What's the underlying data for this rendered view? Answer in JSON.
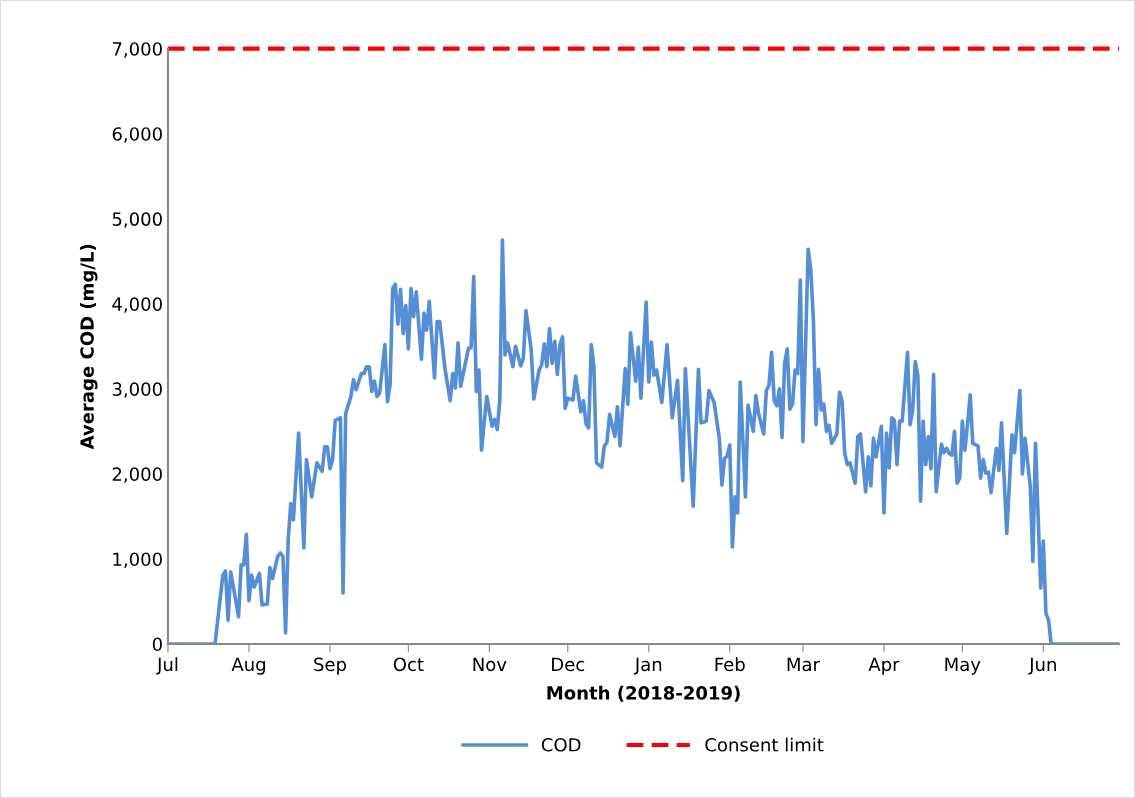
{
  "chart_data": {
    "type": "line",
    "xlabel": "Month (2018-2019)",
    "ylabel": "Average COD (mg/L)",
    "x": [
      "2018-07-01",
      "2018-07-19",
      "2018-07-22",
      "2018-07-23",
      "2018-07-24",
      "2018-07-25",
      "2018-07-27",
      "2018-07-28",
      "2018-07-29",
      "2018-07-30",
      "2018-07-31",
      "2018-08-01",
      "2018-08-02",
      "2018-08-03",
      "2018-08-05",
      "2018-08-06",
      "2018-08-08",
      "2018-08-09",
      "2018-08-10",
      "2018-08-12",
      "2018-08-13",
      "2018-08-14",
      "2018-08-15",
      "2018-08-16",
      "2018-08-17",
      "2018-08-18",
      "2018-08-20",
      "2018-08-22",
      "2018-08-23",
      "2018-08-25",
      "2018-08-27",
      "2018-08-29",
      "2018-08-30",
      "2018-08-31",
      "2018-09-01",
      "2018-09-02",
      "2018-09-03",
      "2018-09-05",
      "2018-09-06",
      "2018-09-07",
      "2018-09-09",
      "2018-09-10",
      "2018-09-11",
      "2018-09-13",
      "2018-09-14",
      "2018-09-15",
      "2018-09-16",
      "2018-09-17",
      "2018-09-18",
      "2018-09-19",
      "2018-09-20",
      "2018-09-22",
      "2018-09-23",
      "2018-09-24",
      "2018-09-25",
      "2018-09-26",
      "2018-09-27",
      "2018-09-28",
      "2018-09-29",
      "2018-09-30",
      "2018-10-01",
      "2018-10-02",
      "2018-10-03",
      "2018-10-04",
      "2018-10-06",
      "2018-10-07",
      "2018-10-08",
      "2018-10-09",
      "2018-10-11",
      "2018-10-12",
      "2018-10-13",
      "2018-10-15",
      "2018-10-17",
      "2018-10-18",
      "2018-10-19",
      "2018-10-20",
      "2018-10-21",
      "2018-10-24",
      "2018-10-25",
      "2018-10-26",
      "2018-10-27",
      "2018-10-28",
      "2018-10-29",
      "2018-10-31",
      "2018-11-02",
      "2018-11-03",
      "2018-11-04",
      "2018-11-05",
      "2018-11-06",
      "2018-11-07",
      "2018-11-08",
      "2018-11-10",
      "2018-11-11",
      "2018-11-13",
      "2018-11-14",
      "2018-11-15",
      "2018-11-17",
      "2018-11-18",
      "2018-11-20",
      "2018-11-21",
      "2018-11-22",
      "2018-11-23",
      "2018-11-24",
      "2018-11-25",
      "2018-11-26",
      "2018-11-27",
      "2018-11-28",
      "2018-11-29",
      "2018-11-30",
      "2018-12-01",
      "2018-12-03",
      "2018-12-04",
      "2018-12-06",
      "2018-12-07",
      "2018-12-08",
      "2018-12-09",
      "2018-12-10",
      "2018-12-11",
      "2018-12-12",
      "2018-12-14",
      "2018-12-15",
      "2018-12-16",
      "2018-12-17",
      "2018-12-19",
      "2018-12-20",
      "2018-12-21",
      "2018-12-23",
      "2018-12-24",
      "2018-12-25",
      "2018-12-27",
      "2018-12-28",
      "2018-12-29",
      "2018-12-31",
      "2019-01-01",
      "2019-01-02",
      "2019-01-03",
      "2019-01-04",
      "2019-01-06",
      "2019-01-08",
      "2019-01-10",
      "2019-01-12",
      "2019-01-14",
      "2019-01-15",
      "2019-01-18",
      "2019-01-20",
      "2019-01-21",
      "2019-01-23",
      "2019-01-24",
      "2019-01-26",
      "2019-01-28",
      "2019-01-29",
      "2019-01-30",
      "2019-01-31",
      "2019-02-01",
      "2019-02-02",
      "2019-02-03",
      "2019-02-04",
      "2019-02-05",
      "2019-02-07",
      "2019-02-08",
      "2019-02-10",
      "2019-02-11",
      "2019-02-12",
      "2019-02-14",
      "2019-02-15",
      "2019-02-16",
      "2019-02-17",
      "2019-02-18",
      "2019-02-19",
      "2019-02-20",
      "2019-02-21",
      "2019-02-22",
      "2019-02-23",
      "2019-02-24",
      "2019-02-25",
      "2019-02-26",
      "2019-02-27",
      "2019-02-28",
      "2019-03-01",
      "2019-03-03",
      "2019-03-04",
      "2019-03-05",
      "2019-03-06",
      "2019-03-07",
      "2019-03-08",
      "2019-03-09",
      "2019-03-10",
      "2019-03-11",
      "2019-03-12",
      "2019-03-14",
      "2019-03-15",
      "2019-03-16",
      "2019-03-17",
      "2019-03-18",
      "2019-03-19",
      "2019-03-21",
      "2019-03-22",
      "2019-03-23",
      "2019-03-25",
      "2019-03-26",
      "2019-03-27",
      "2019-03-28",
      "2019-03-29",
      "2019-03-31",
      "2019-04-01",
      "2019-04-02",
      "2019-04-03",
      "2019-04-04",
      "2019-04-05",
      "2019-04-06",
      "2019-04-07",
      "2019-04-08",
      "2019-04-10",
      "2019-04-11",
      "2019-04-12",
      "2019-04-13",
      "2019-04-14",
      "2019-04-15",
      "2019-04-16",
      "2019-04-17",
      "2019-04-18",
      "2019-04-19",
      "2019-04-20",
      "2019-04-21",
      "2019-04-23",
      "2019-04-24",
      "2019-04-25",
      "2019-04-26",
      "2019-04-27",
      "2019-04-28",
      "2019-04-29",
      "2019-04-30",
      "2019-05-01",
      "2019-05-02",
      "2019-05-03",
      "2019-05-04",
      "2019-05-05",
      "2019-05-07",
      "2019-05-08",
      "2019-05-09",
      "2019-05-10",
      "2019-05-11",
      "2019-05-12",
      "2019-05-14",
      "2019-05-15",
      "2019-05-16",
      "2019-05-18",
      "2019-05-20",
      "2019-05-21",
      "2019-05-23",
      "2019-05-24",
      "2019-05-25",
      "2019-05-27",
      "2019-05-28",
      "2019-05-29",
      "2019-05-31",
      "2019-06-01",
      "2019-06-02",
      "2019-06-03",
      "2019-06-04",
      "2019-06-30"
    ],
    "series": [
      {
        "name": "COD",
        "color": "#558ed5",
        "values": [
          0,
          0,
          810,
          860,
          280,
          850,
          500,
          320,
          930,
          930,
          1290,
          510,
          810,
          670,
          830,
          460,
          470,
          900,
          770,
          1030,
          1070,
          1030,
          130,
          1220,
          1650,
          1460,
          2480,
          1130,
          2170,
          1730,
          2130,
          2030,
          2320,
          2320,
          2060,
          2170,
          2630,
          2660,
          600,
          2710,
          2910,
          3110,
          2990,
          3180,
          3180,
          3260,
          3260,
          2970,
          3090,
          2910,
          2950,
          3520,
          2850,
          3050,
          4180,
          4230,
          3760,
          4170,
          3650,
          3980,
          3470,
          4180,
          3850,
          4140,
          3350,
          3890,
          3690,
          4030,
          3130,
          3790,
          3790,
          3240,
          2860,
          3180,
          3010,
          3540,
          3030,
          3480,
          3480,
          4320,
          2970,
          3220,
          2280,
          2910,
          2560,
          2640,
          2520,
          2870,
          4750,
          3400,
          3540,
          3260,
          3500,
          3270,
          3360,
          3920,
          3460,
          2880,
          3220,
          3280,
          3530,
          3260,
          3710,
          3300,
          3560,
          3170,
          3520,
          3610,
          2770,
          2890,
          2870,
          3150,
          2730,
          2860,
          2590,
          2540,
          3520,
          3260,
          2130,
          2080,
          2330,
          2370,
          2700,
          2440,
          2790,
          2330,
          3240,
          2820,
          3660,
          3090,
          3490,
          2890,
          4020,
          3080,
          3550,
          3160,
          3220,
          2840,
          3520,
          2660,
          3100,
          1920,
          3240,
          1620,
          3230,
          2600,
          2620,
          2980,
          2840,
          2420,
          1870,
          2180,
          2210,
          2340,
          1140,
          1730,
          1540,
          3080,
          1730,
          2810,
          2500,
          2920,
          2710,
          2470,
          2980,
          3040,
          3430,
          2870,
          2800,
          3000,
          2430,
          3300,
          3470,
          2760,
          2820,
          3220,
          3180,
          4280,
          2380,
          4640,
          4400,
          3810,
          2580,
          3230,
          2750,
          2820,
          2500,
          2570,
          2360,
          2470,
          2960,
          2850,
          2240,
          2110,
          2130,
          1890,
          2440,
          2470,
          1790,
          2200,
          1860,
          2420,
          2200,
          2560,
          1540,
          2480,
          2070,
          2660,
          2630,
          2110,
          2620,
          2620,
          3430,
          2580,
          2750,
          3320,
          3150,
          1680,
          2620,
          2110,
          2440,
          2060,
          3170,
          1790,
          2350,
          2250,
          2300,
          2240,
          2220,
          2500,
          1890,
          1950,
          2620,
          2280,
          2590,
          2930,
          2360,
          2330,
          1950,
          2170,
          2010,
          2020,
          1780,
          2300,
          2040,
          2600,
          1300,
          2460,
          2250,
          2980,
          2000,
          2420,
          1850,
          970,
          2360,
          660,
          1210,
          360,
          280,
          0,
          0
        ]
      }
    ],
    "xlim": [
      "2018-07-01",
      "2019-06-30"
    ],
    "xticks": [
      {
        "value": "2018-07-01",
        "label": "Jul"
      },
      {
        "value": "2018-08-01",
        "label": "Aug"
      },
      {
        "value": "2018-09-01",
        "label": "Sep"
      },
      {
        "value": "2018-10-01",
        "label": "Oct"
      },
      {
        "value": "2018-11-01",
        "label": "Nov"
      },
      {
        "value": "2018-12-01",
        "label": "Dec"
      },
      {
        "value": "2019-01-01",
        "label": "Jan"
      },
      {
        "value": "2019-02-01",
        "label": "Feb"
      },
      {
        "value": "2019-03-01",
        "label": "Mar"
      },
      {
        "value": "2019-04-01",
        "label": "Apr"
      },
      {
        "value": "2019-05-01",
        "label": "May"
      },
      {
        "value": "2019-06-01",
        "label": "Jun"
      }
    ],
    "ylim": [
      0,
      7000
    ],
    "yticks": [
      0,
      {
        "value": 1000,
        "label": "1,000"
      },
      {
        "value": 2000,
        "label": "2,000"
      },
      {
        "value": 3000,
        "label": "3,000"
      },
      {
        "value": 4000,
        "label": "4,000"
      },
      {
        "value": 5000,
        "label": "5,000"
      },
      {
        "value": 6000,
        "label": "6,000"
      },
      {
        "value": 7000,
        "label": "7,000"
      }
    ],
    "ref_lines": [
      {
        "axis": "y",
        "value": 7000,
        "label": "Consent limit",
        "color": "#ff0000",
        "line_style": "dashed"
      }
    ],
    "grid": false,
    "legend": "bottom",
    "marker": "none",
    "line_style": "solid"
  }
}
